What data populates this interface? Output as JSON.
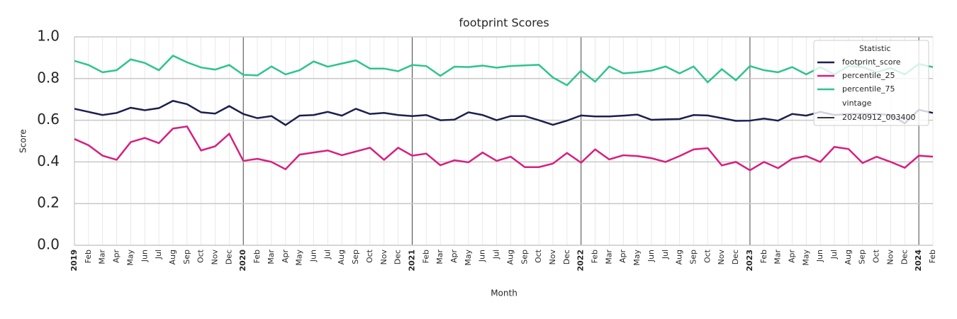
{
  "chart_data": {
    "type": "line",
    "title": "footprint Scores",
    "x_label": "Month",
    "y_label": "Score",
    "categories": [
      "2019",
      "Feb",
      "Mar",
      "Apr",
      "May",
      "Jun",
      "Jul",
      "Aug",
      "Sep",
      "Oct",
      "Nov",
      "Dec",
      "2020",
      "Feb",
      "Mar",
      "Apr",
      "May",
      "Jun",
      "Jul",
      "Aug",
      "Sep",
      "Oct",
      "Nov",
      "Dec",
      "2021",
      "Feb",
      "Mar",
      "Apr",
      "May",
      "Jun",
      "Jul",
      "Aug",
      "Sep",
      "Oct",
      "Nov",
      "Dec",
      "2022",
      "Feb",
      "Mar",
      "Apr",
      "May",
      "Jun",
      "Jul",
      "Aug",
      "Sep",
      "Oct",
      "Nov",
      "Dec",
      "2023",
      "Feb",
      "Mar",
      "Apr",
      "May",
      "Jun",
      "Jul",
      "Aug",
      "Sep",
      "Oct",
      "Nov",
      "Dec",
      "2024",
      "Feb"
    ],
    "series": [
      {
        "name": "footprint_score",
        "color": "#1c1f4f",
        "values": [
          0.655,
          0.64,
          0.625,
          0.635,
          0.66,
          0.648,
          0.658,
          0.693,
          0.677,
          0.638,
          0.632,
          0.668,
          0.63,
          0.61,
          0.62,
          0.577,
          0.622,
          0.625,
          0.64,
          0.622,
          0.655,
          0.63,
          0.635,
          0.625,
          0.62,
          0.625,
          0.6,
          0.603,
          0.638,
          0.625,
          0.6,
          0.62,
          0.62,
          0.6,
          0.578,
          0.598,
          0.623,
          0.618,
          0.618,
          0.622,
          0.627,
          0.602,
          0.604,
          0.606,
          0.625,
          0.623,
          0.61,
          0.597,
          0.598,
          0.608,
          0.598,
          0.63,
          0.622,
          0.64,
          0.625,
          0.63,
          0.63,
          0.63,
          0.625,
          0.585,
          0.65,
          0.635
        ]
      },
      {
        "name": "percentile_25",
        "color": "#d6207f",
        "values": [
          0.51,
          0.48,
          0.43,
          0.41,
          0.495,
          0.515,
          0.49,
          0.56,
          0.57,
          0.455,
          0.475,
          0.535,
          0.405,
          0.415,
          0.4,
          0.365,
          0.435,
          0.445,
          0.455,
          0.432,
          0.45,
          0.468,
          0.41,
          0.468,
          0.43,
          0.44,
          0.384,
          0.408,
          0.398,
          0.445,
          0.405,
          0.425,
          0.375,
          0.375,
          0.392,
          0.443,
          0.396,
          0.46,
          0.412,
          0.432,
          0.428,
          0.418,
          0.4,
          0.428,
          0.46,
          0.466,
          0.383,
          0.4,
          0.36,
          0.4,
          0.37,
          0.415,
          0.428,
          0.4,
          0.472,
          0.462,
          0.395,
          0.425,
          0.4,
          0.372,
          0.43,
          0.425
        ]
      },
      {
        "name": "percentile_75",
        "color": "#2ec48e",
        "values": [
          0.885,
          0.865,
          0.83,
          0.84,
          0.892,
          0.875,
          0.84,
          0.91,
          0.878,
          0.853,
          0.843,
          0.865,
          0.818,
          0.815,
          0.858,
          0.82,
          0.84,
          0.882,
          0.857,
          0.872,
          0.887,
          0.848,
          0.848,
          0.835,
          0.865,
          0.86,
          0.813,
          0.857,
          0.855,
          0.862,
          0.852,
          0.86,
          0.863,
          0.866,
          0.805,
          0.768,
          0.838,
          0.785,
          0.858,
          0.825,
          0.83,
          0.838,
          0.858,
          0.825,
          0.858,
          0.782,
          0.845,
          0.792,
          0.86,
          0.84,
          0.83,
          0.855,
          0.82,
          0.855,
          0.82,
          0.86,
          0.855,
          0.83,
          0.85,
          0.82,
          0.87,
          0.855
        ]
      }
    ],
    "ylim": [
      0,
      1
    ],
    "yticks": [
      {
        "value": 0,
        "label": "0.0"
      },
      0.2,
      0.4,
      0.6,
      0.8,
      {
        "value": 1,
        "label": "1.0"
      }
    ],
    "grid": true,
    "legend": {
      "title": "Statistic",
      "position": "upper right"
    },
    "vintage": {
      "title": "vintage",
      "label": "20240912_003400",
      "color": "#333333"
    }
  }
}
